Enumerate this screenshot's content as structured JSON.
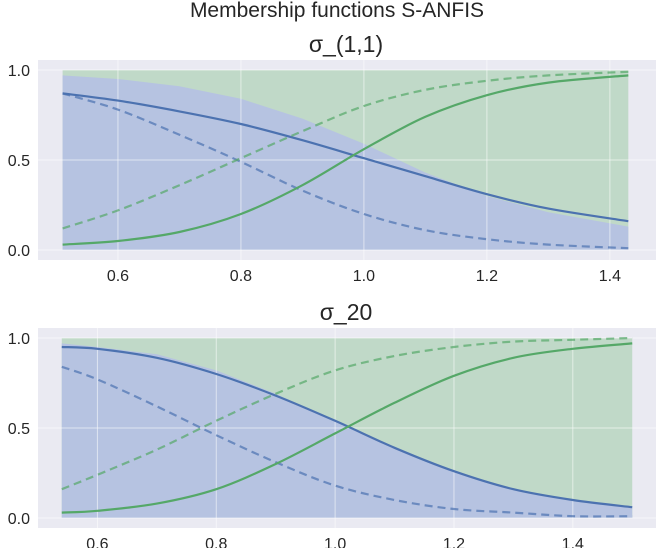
{
  "figure": {
    "suptitle": "Membership functions S-ANFIS"
  },
  "chart_data": [
    {
      "type": "line",
      "title": "σ_(1,1)",
      "xlabel": "",
      "ylabel": "",
      "xlim": [
        0.47,
        1.475
      ],
      "ylim": [
        0.0,
        1.0
      ],
      "xticks": [
        "0.6",
        "0.8",
        "1.0",
        "1.2",
        "1.4"
      ],
      "yticks": [
        "0.0",
        "0.5",
        "1.0"
      ],
      "grid": true,
      "legend": "none",
      "colors": {
        "blue": "#4c72b0",
        "green": "#55a868",
        "blue_fill": "#b5c2e3",
        "green_fill": "#bed8c5",
        "background": "#eaeaf2"
      },
      "x": [
        0.51,
        0.6,
        0.7,
        0.8,
        0.9,
        1.0,
        1.1,
        1.2,
        1.3,
        1.43
      ],
      "series": [
        {
          "color": "blue",
          "style": "solid",
          "values": [
            0.87,
            0.83,
            0.77,
            0.7,
            0.61,
            0.51,
            0.41,
            0.31,
            0.23,
            0.16
          ]
        },
        {
          "color": "blue",
          "style": "dashed",
          "values": [
            0.87,
            0.78,
            0.64,
            0.49,
            0.33,
            0.2,
            0.11,
            0.06,
            0.03,
            0.01
          ]
        },
        {
          "color": "green",
          "style": "solid",
          "values": [
            0.03,
            0.05,
            0.1,
            0.2,
            0.36,
            0.56,
            0.74,
            0.86,
            0.93,
            0.97
          ]
        },
        {
          "color": "green",
          "style": "dashed",
          "values": [
            0.12,
            0.22,
            0.36,
            0.51,
            0.66,
            0.8,
            0.89,
            0.94,
            0.97,
            0.99
          ]
        },
        {
          "color": "blue_fill",
          "style": "area",
          "values": [
            0.97,
            0.95,
            0.91,
            0.84,
            0.73,
            0.59,
            0.43,
            0.3,
            0.21,
            0.13
          ]
        },
        {
          "color": "green_fill",
          "style": "area",
          "values": [
            1.0,
            1.0,
            1.0,
            1.0,
            1.0,
            1.0,
            1.0,
            1.0,
            1.0,
            1.0
          ]
        }
      ]
    },
    {
      "type": "line",
      "title": "σ_20",
      "xlabel": "",
      "ylabel": "",
      "xlim": [
        0.5,
        1.54
      ],
      "ylim": [
        0.0,
        1.0
      ],
      "xticks": [
        "0.6",
        "0.8",
        "1.0",
        "1.2",
        "1.4"
      ],
      "yticks": [
        "0.0",
        "0.5",
        "1.0"
      ],
      "grid": true,
      "legend": "none",
      "colors": {
        "blue": "#4c72b0",
        "green": "#55a868",
        "blue_fill": "#b5c2e3",
        "green_fill": "#bed8c5",
        "background": "#eaeaf2"
      },
      "x": [
        0.54,
        0.6,
        0.7,
        0.8,
        0.9,
        1.0,
        1.1,
        1.2,
        1.3,
        1.4,
        1.5
      ],
      "series": [
        {
          "color": "blue",
          "style": "solid",
          "values": [
            0.95,
            0.94,
            0.89,
            0.8,
            0.68,
            0.54,
            0.39,
            0.26,
            0.16,
            0.1,
            0.06
          ]
        },
        {
          "color": "blue",
          "style": "dashed",
          "values": [
            0.84,
            0.77,
            0.62,
            0.46,
            0.31,
            0.18,
            0.1,
            0.05,
            0.03,
            0.01,
            0.01
          ]
        },
        {
          "color": "green",
          "style": "solid",
          "values": [
            0.03,
            0.04,
            0.08,
            0.16,
            0.3,
            0.47,
            0.64,
            0.79,
            0.89,
            0.94,
            0.97
          ]
        },
        {
          "color": "green",
          "style": "dashed",
          "values": [
            0.16,
            0.24,
            0.38,
            0.54,
            0.69,
            0.82,
            0.9,
            0.95,
            0.98,
            0.99,
            1.0
          ]
        },
        {
          "color": "blue_fill",
          "style": "area",
          "values": [
            0.97,
            0.95,
            0.91,
            0.82,
            0.69,
            0.54,
            0.39,
            0.26,
            0.16,
            0.1,
            0.06
          ]
        },
        {
          "color": "green_fill",
          "style": "area",
          "values": [
            1.0,
            1.0,
            1.0,
            1.0,
            1.0,
            1.0,
            1.0,
            1.0,
            1.0,
            1.0,
            1.0
          ]
        }
      ]
    }
  ]
}
